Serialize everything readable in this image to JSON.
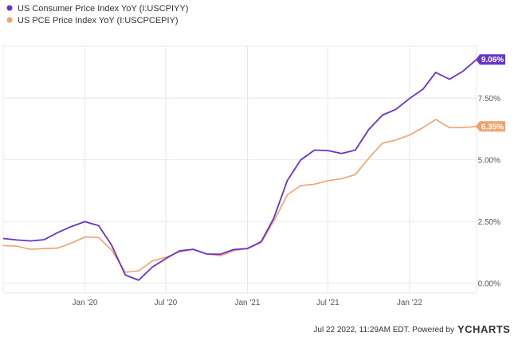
{
  "chart_data": {
    "type": "line",
    "x_ticks": [
      "Jan '20",
      "Jul '20",
      "Jan '21",
      "Jul '21",
      "Jan '22"
    ],
    "y_ticks": [
      "0.00%",
      "2.50%",
      "5.00%",
      "7.50%"
    ],
    "y_tick_values": [
      0,
      2.5,
      5,
      7.5
    ],
    "ylim": [
      -0.4,
      9.6
    ],
    "x_domain": [
      "2019-07-01",
      "2022-06-01"
    ],
    "grid": true,
    "legend_position": "top-left",
    "series": [
      {
        "name": "US Consumer Price Index YoY (I:USCPIYY)",
        "color": "#6633cc",
        "end_label": "9.06%",
        "points": [
          [
            "2019-07-01",
            1.81
          ],
          [
            "2019-08-01",
            1.75
          ],
          [
            "2019-09-01",
            1.71
          ],
          [
            "2019-10-01",
            1.76
          ],
          [
            "2019-11-01",
            2.05
          ],
          [
            "2019-12-01",
            2.29
          ],
          [
            "2020-01-01",
            2.49
          ],
          [
            "2020-02-01",
            2.33
          ],
          [
            "2020-03-01",
            1.54
          ],
          [
            "2020-04-01",
            0.33
          ],
          [
            "2020-05-01",
            0.12
          ],
          [
            "2020-06-01",
            0.65
          ],
          [
            "2020-07-01",
            0.99
          ],
          [
            "2020-08-01",
            1.31
          ],
          [
            "2020-09-01",
            1.37
          ],
          [
            "2020-10-01",
            1.18
          ],
          [
            "2020-11-01",
            1.17
          ],
          [
            "2020-12-01",
            1.36
          ],
          [
            "2021-01-01",
            1.4
          ],
          [
            "2021-02-01",
            1.68
          ],
          [
            "2021-03-01",
            2.62
          ],
          [
            "2021-04-01",
            4.16
          ],
          [
            "2021-05-01",
            4.99
          ],
          [
            "2021-06-01",
            5.39
          ],
          [
            "2021-07-01",
            5.37
          ],
          [
            "2021-08-01",
            5.25
          ],
          [
            "2021-09-01",
            5.39
          ],
          [
            "2021-10-01",
            6.22
          ],
          [
            "2021-11-01",
            6.81
          ],
          [
            "2021-12-01",
            7.04
          ],
          [
            "2022-01-01",
            7.48
          ],
          [
            "2022-02-01",
            7.87
          ],
          [
            "2022-03-01",
            8.54
          ],
          [
            "2022-04-01",
            8.26
          ],
          [
            "2022-05-01",
            8.58
          ],
          [
            "2022-06-01",
            9.06
          ]
        ]
      },
      {
        "name": "US PCE Price Index YoY (I:USCPCEPIY)",
        "color": "#f4a06b",
        "end_label": "6.35%",
        "points": [
          [
            "2019-07-01",
            1.52
          ],
          [
            "2019-08-01",
            1.5
          ],
          [
            "2019-09-01",
            1.37
          ],
          [
            "2019-10-01",
            1.4
          ],
          [
            "2019-11-01",
            1.42
          ],
          [
            "2019-12-01",
            1.62
          ],
          [
            "2020-01-01",
            1.87
          ],
          [
            "2020-02-01",
            1.85
          ],
          [
            "2020-03-01",
            1.34
          ],
          [
            "2020-04-01",
            0.44
          ],
          [
            "2020-05-01",
            0.5
          ],
          [
            "2020-06-01",
            0.9
          ],
          [
            "2020-07-01",
            1.05
          ],
          [
            "2020-08-01",
            1.26
          ],
          [
            "2020-09-01",
            1.37
          ],
          [
            "2020-10-01",
            1.19
          ],
          [
            "2020-11-01",
            1.11
          ],
          [
            "2020-12-01",
            1.31
          ],
          [
            "2021-01-01",
            1.41
          ],
          [
            "2021-02-01",
            1.64
          ],
          [
            "2021-03-01",
            2.5
          ],
          [
            "2021-04-01",
            3.58
          ],
          [
            "2021-05-01",
            3.95
          ],
          [
            "2021-06-01",
            4.01
          ],
          [
            "2021-07-01",
            4.15
          ],
          [
            "2021-08-01",
            4.23
          ],
          [
            "2021-09-01",
            4.4
          ],
          [
            "2021-10-01",
            5.06
          ],
          [
            "2021-11-01",
            5.67
          ],
          [
            "2021-12-01",
            5.8
          ],
          [
            "2022-01-01",
            6.0
          ],
          [
            "2022-02-01",
            6.31
          ],
          [
            "2022-03-01",
            6.63
          ],
          [
            "2022-04-01",
            6.3
          ],
          [
            "2022-05-01",
            6.3
          ],
          [
            "2022-06-01",
            6.35
          ]
        ]
      }
    ]
  },
  "footer": {
    "timestamp": "Jul 22 2022, 11:29AM EDT.",
    "powered_by": "Powered by",
    "brand": "YCHARTS"
  },
  "colors": {
    "grid": "#e8e8e8",
    "cpi": "#6633cc",
    "pce": "#f4a06b"
  }
}
